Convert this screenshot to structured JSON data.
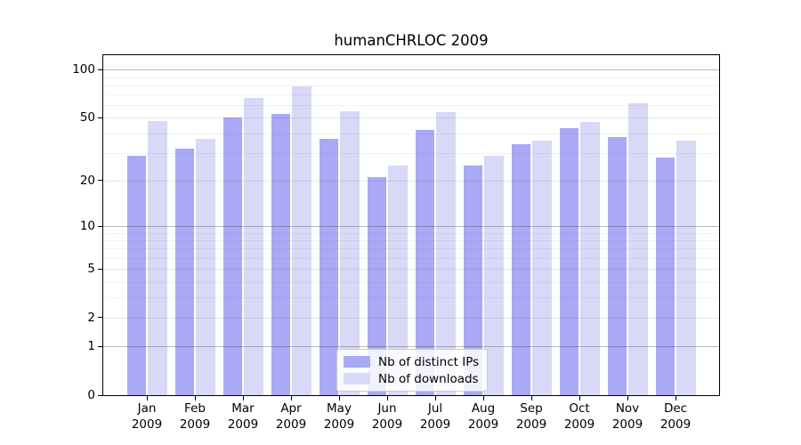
{
  "chart_data": {
    "type": "bar",
    "title": "humanCHRLOC 2009",
    "scale": "log10(x+1)",
    "categories": [
      "Jan",
      "Feb",
      "Mar",
      "Apr",
      "May",
      "Jun",
      "Jul",
      "Aug",
      "Sep",
      "Oct",
      "Nov",
      "Dec"
    ],
    "category_year": "2009",
    "series": [
      {
        "name": "Nb of distinct IPs",
        "color": "#a9a9f5",
        "values": [
          29,
          32,
          50,
          53,
          37,
          21,
          42,
          25,
          34,
          43,
          38,
          28
        ]
      },
      {
        "name": "Nb of downloads",
        "color": "#d8d8f7",
        "values": [
          48,
          37,
          67,
          79,
          55,
          25,
          54,
          29,
          36,
          47,
          62,
          36
        ]
      }
    ],
    "y_ticks": [
      100,
      50,
      20,
      10,
      5,
      2,
      1,
      0
    ],
    "ylim": [
      0,
      123
    ],
    "grid": true,
    "legend_position": "bottom-center-inside",
    "legend_entries": [
      "Nb of distinct IPs",
      "Nb of downloads"
    ]
  }
}
